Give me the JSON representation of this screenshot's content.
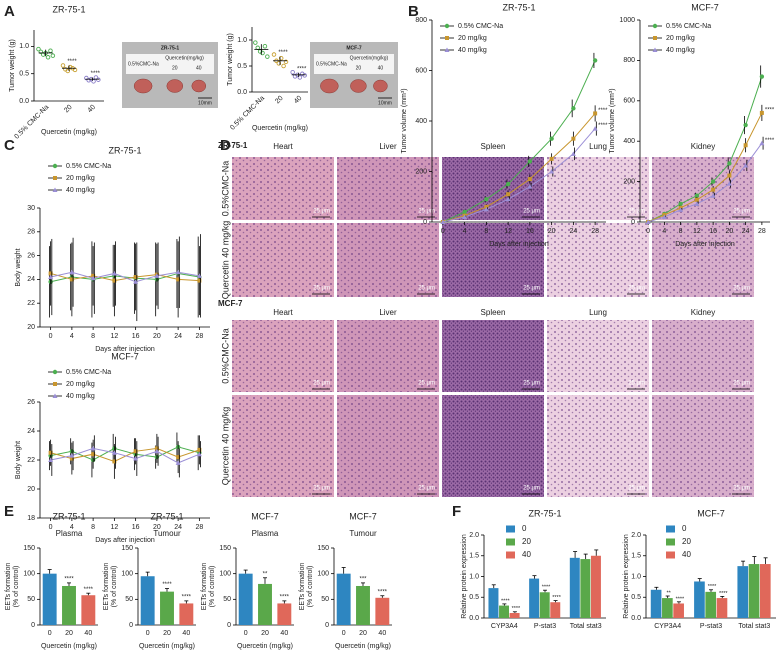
{
  "panel_labels": [
    "A",
    "B",
    "C",
    "D",
    "E",
    "F"
  ],
  "photos": [
    {
      "title": "ZR-75-1",
      "control": "0.5%CMC-Na",
      "treatment": "Quercetin(mg/kg)",
      "doses": [
        "20",
        "40"
      ],
      "scale": "10mm"
    },
    {
      "title": "MCF-7",
      "control": "0.5%CMC-Na",
      "treatment": "Quercetin(mg/kg)",
      "doses": [
        "20",
        "40"
      ],
      "scale": "10mm"
    }
  ],
  "histology": {
    "scale": "25 μm",
    "blocks": [
      {
        "title": "ZR-75-1",
        "tissues": [
          "Heart",
          "Liver",
          "Spleen",
          "Lung",
          "Kidney"
        ],
        "rows": [
          "0.5%CMC-Na",
          "Quercetin 40 mg/kg"
        ]
      },
      {
        "title": "MCF-7",
        "tissues": [
          "Heart",
          "Liver",
          "Spleen",
          "Lung",
          "Kidney"
        ],
        "rows": [
          "0.5%CMC-Na",
          "Quercetin 40 mg/kg"
        ]
      }
    ]
  },
  "chart_data": [
    {
      "type": "dot",
      "title": "ZR-75-1",
      "y_label": "Tumor weight (g)",
      "x_label": "Quercetin (mg/kg)",
      "categories": [
        "0.5% CMC-Na",
        "20",
        "40"
      ],
      "colors": [
        "#4caf50",
        "#c8a030",
        "#8a7ec8"
      ],
      "values": [
        0.88,
        0.6,
        0.4
      ],
      "errors": [
        0.06,
        0.05,
        0.03
      ],
      "points": [
        [
          0.95,
          0.9,
          0.85,
          0.88,
          0.8,
          0.92,
          0.83
        ],
        [
          0.65,
          0.58,
          0.55,
          0.62,
          0.6,
          0.57
        ],
        [
          0.42,
          0.38,
          0.4,
          0.36,
          0.43,
          0.39
        ]
      ],
      "annotations": [
        null,
        "****",
        "****"
      ],
      "ylim": [
        0,
        1.3
      ],
      "yticks": [
        {
          "value": 0,
          "label": "0.0"
        },
        {
          "value": 0.5,
          "label": "0.5"
        },
        {
          "value": 1,
          "label": "1.0"
        }
      ]
    },
    {
      "type": "dot",
      "y_label": "Tumor weight (g)",
      "x_label": "Quercetin (mg/kg)",
      "categories": [
        "0.5% CMC-Na",
        "20",
        "40"
      ],
      "colors": [
        "#4caf50",
        "#c8a030",
        "#8a7ec8"
      ],
      "values": [
        0.82,
        0.6,
        0.33
      ],
      "errors": [
        0.1,
        0.08,
        0.04
      ],
      "points": [
        [
          0.95,
          0.85,
          0.78,
          0.75,
          0.88,
          0.68
        ],
        [
          0.72,
          0.6,
          0.55,
          0.65,
          0.5,
          0.58
        ],
        [
          0.38,
          0.3,
          0.33,
          0.28,
          0.35,
          0.32
        ]
      ],
      "annotations": [
        null,
        "****",
        "****"
      ],
      "ylim": [
        0,
        1.25
      ],
      "yticks": [
        {
          "value": 0,
          "label": "0.0"
        },
        {
          "value": 0.5,
          "label": "0.5"
        },
        {
          "value": 1,
          "label": "1.0"
        }
      ]
    },
    {
      "type": "line",
      "title": "ZR-75-1",
      "y_label": "Tumor volume (mm³)",
      "x_label": "Days after injection",
      "x": [
        0,
        4,
        8,
        12,
        16,
        20,
        24,
        28
      ],
      "xlim": [
        -2,
        30
      ],
      "xticks": [
        0,
        4,
        8,
        12,
        16,
        20,
        24,
        28
      ],
      "ylim": [
        0,
        800
      ],
      "yticks": [
        0,
        200,
        400,
        600,
        800
      ],
      "series": [
        {
          "name": "0.5% CMC-Na",
          "color": "#4caf50",
          "marker": "circle",
          "values": [
            0,
            40,
            90,
            150,
            240,
            330,
            450,
            640
          ],
          "errors": [
            0,
            8,
            12,
            18,
            22,
            28,
            35,
            30
          ]
        },
        {
          "name": "20 mg/kg",
          "color": "#c8962e",
          "marker": "square",
          "values": [
            0,
            25,
            60,
            110,
            170,
            250,
            330,
            430
          ],
          "errors": [
            0,
            6,
            10,
            15,
            18,
            22,
            28,
            32
          ],
          "annotation": "****"
        },
        {
          "name": "40 mg/kg",
          "color": "#9b8fd6",
          "marker": "triangle",
          "values": [
            0,
            20,
            50,
            90,
            140,
            200,
            270,
            370
          ],
          "errors": [
            0,
            5,
            8,
            12,
            15,
            20,
            25,
            28
          ],
          "annotation": "****"
        }
      ]
    },
    {
      "type": "line",
      "title": "MCF-7",
      "y_label": "Tumor volume (mm³)",
      "x_label": "Days after injection",
      "x": [
        0,
        4,
        8,
        12,
        16,
        20,
        24,
        28
      ],
      "xlim": [
        -2,
        30
      ],
      "xticks": [
        0,
        4,
        8,
        12,
        16,
        20,
        24,
        28
      ],
      "ylim": [
        0,
        1000
      ],
      "yticks": [
        0,
        200,
        400,
        600,
        800,
        1000
      ],
      "series": [
        {
          "name": "0.5% CMC-Na",
          "color": "#4caf50",
          "marker": "circle",
          "values": [
            0,
            40,
            90,
            130,
            200,
            290,
            480,
            720
          ],
          "errors": [
            0,
            8,
            12,
            15,
            20,
            30,
            45,
            55
          ]
        },
        {
          "name": "20 mg/kg",
          "color": "#c8962e",
          "marker": "square",
          "values": [
            0,
            35,
            70,
            110,
            160,
            230,
            380,
            540
          ],
          "errors": [
            0,
            7,
            10,
            14,
            18,
            25,
            35,
            40
          ],
          "annotation": "****"
        },
        {
          "name": "40 mg/kg",
          "color": "#9b8fd6",
          "marker": "triangle",
          "values": [
            0,
            25,
            60,
            90,
            130,
            190,
            280,
            390
          ],
          "errors": [
            0,
            6,
            9,
            12,
            15,
            20,
            28,
            32
          ],
          "annotation": "****"
        }
      ]
    },
    {
      "type": "line",
      "title": "ZR-75-1",
      "y_label": "Body weight",
      "x_label": "Days after injection",
      "x": [
        0,
        4,
        8,
        12,
        16,
        20,
        24,
        28
      ],
      "xlim": [
        -2,
        30
      ],
      "xticks": [
        0,
        4,
        8,
        12,
        16,
        20,
        24,
        28
      ],
      "ylim": [
        20,
        30
      ],
      "yticks": [
        20,
        22,
        24,
        26,
        28,
        30
      ],
      "series": [
        {
          "name": "0.5% CMC-Na",
          "color": "#4caf50",
          "marker": "circle",
          "values": [
            23.8,
            24.2,
            24.0,
            24.3,
            24.1,
            24.0,
            24.5,
            24.2
          ],
          "errors": [
            3,
            2.8,
            3.2,
            2.6,
            3,
            3.1,
            2.9,
            3.4
          ]
        },
        {
          "name": "20 mg/kg",
          "color": "#c8962e",
          "marker": "square",
          "values": [
            24.5,
            24.0,
            24.3,
            23.9,
            24.2,
            24.4,
            24.0,
            23.9
          ],
          "errors": [
            2.7,
            3.1,
            2.5,
            3,
            2.8,
            2.6,
            3.2,
            2.9
          ]
        },
        {
          "name": "40 mg/kg",
          "color": "#9b8fd6",
          "marker": "triangle",
          "values": [
            24.2,
            24.6,
            24.1,
            24.5,
            23.8,
            24.3,
            24.6,
            24.3
          ],
          "errors": [
            3.2,
            2.9,
            3,
            2.7,
            3.3,
            2.8,
            3,
            3.5
          ]
        }
      ]
    },
    {
      "type": "line",
      "title": "MCF-7",
      "y_label": "Body weight",
      "x_label": "Days after injection",
      "x": [
        0,
        4,
        8,
        12,
        16,
        20,
        24,
        28
      ],
      "xlim": [
        -2,
        30
      ],
      "xticks": [
        0,
        4,
        8,
        12,
        16,
        20,
        24,
        28
      ],
      "ylim": [
        18,
        26
      ],
      "yticks": [
        18,
        20,
        22,
        24,
        26
      ],
      "series": [
        {
          "name": "0.5% CMC-Na",
          "color": "#4caf50",
          "marker": "circle",
          "values": [
            22.3,
            22.6,
            22.0,
            22.8,
            22.4,
            22.2,
            22.9,
            22.5
          ],
          "errors": [
            1,
            0.9,
            1.2,
            1,
            1.1,
            0.8,
            1,
            1.2
          ]
        },
        {
          "name": "20 mg/kg",
          "color": "#c8962e",
          "marker": "square",
          "values": [
            22.5,
            22.1,
            22.4,
            21.9,
            22.6,
            22.8,
            22.2,
            22.7
          ],
          "errors": [
            0.9,
            1.1,
            1,
            1.2,
            0.9,
            1,
            1.1,
            1
          ]
        },
        {
          "name": "40 mg/kg",
          "color": "#9b8fd6",
          "marker": "triangle",
          "values": [
            22.0,
            22.3,
            22.8,
            22.5,
            22.1,
            22.6,
            21.8,
            22.4
          ],
          "errors": [
            1.1,
            1,
            0.9,
            1.1,
            1.2,
            1,
            1,
            0.9
          ]
        }
      ]
    },
    {
      "type": "bar",
      "title": "ZR-75-1",
      "subtitle": "Plasma",
      "y_label": [
        "EETs formation",
        "(% of control)"
      ],
      "x_label": "Quercetin (mg/kg)",
      "categories": [
        "0",
        "20",
        "40"
      ],
      "colors": [
        "#2e86c1",
        "#5aa84a",
        "#e0685a"
      ],
      "values": [
        100,
        76,
        58
      ],
      "errors": [
        8,
        6,
        4
      ],
      "annotations": [
        null,
        "****",
        "****"
      ],
      "ylim": [
        0,
        150
      ],
      "yticks": [
        0,
        50,
        100,
        150
      ]
    },
    {
      "type": "bar",
      "title": "ZR-75-1",
      "subtitle": "Tumour",
      "y_label": [
        "EETs formation",
        "(% of control)"
      ],
      "x_label": "Quercetin (mg/kg)",
      "categories": [
        "0",
        "20",
        "40"
      ],
      "colors": [
        "#2e86c1",
        "#5aa84a",
        "#e0685a"
      ],
      "values": [
        95,
        65,
        42
      ],
      "errors": [
        8,
        6,
        5
      ],
      "annotations": [
        null,
        "****",
        "****"
      ],
      "ylim": [
        0,
        150
      ],
      "yticks": [
        0,
        50,
        100,
        150
      ]
    },
    {
      "type": "bar",
      "title": "MCF-7",
      "subtitle": "Plasma",
      "y_label": [
        "EETs formation",
        "(% of control)"
      ],
      "x_label": "Quercetin (mg/kg)",
      "categories": [
        "0",
        "20",
        "40"
      ],
      "colors": [
        "#2e86c1",
        "#5aa84a",
        "#e0685a"
      ],
      "values": [
        100,
        80,
        42
      ],
      "errors": [
        7,
        12,
        5
      ],
      "annotations": [
        null,
        "**",
        "****"
      ],
      "ylim": [
        0,
        150
      ],
      "yticks": [
        0,
        50,
        100,
        150
      ]
    },
    {
      "type": "bar",
      "title": "MCF-7",
      "subtitle": "Tumour",
      "y_label": [
        "EETs formation",
        "(% of control)"
      ],
      "x_label": "Quercetin (mg/kg)",
      "categories": [
        "0",
        "20",
        "40"
      ],
      "colors": [
        "#2e86c1",
        "#5aa84a",
        "#e0685a"
      ],
      "values": [
        100,
        76,
        53
      ],
      "errors": [
        12,
        6,
        4
      ],
      "annotations": [
        null,
        "***",
        "****"
      ],
      "ylim": [
        0,
        150
      ],
      "yticks": [
        0,
        50,
        100,
        150
      ]
    },
    {
      "type": "grouped_bar",
      "title": "ZR-75-1",
      "y_label": "Relative protein expression",
      "categories": [
        "CYP3A4",
        "P-stat3",
        "Total stat3"
      ],
      "ylim": [
        0,
        2
      ],
      "yticks": [
        {
          "value": 0,
          "label": "0.0"
        },
        {
          "value": 0.5,
          "label": "0.5"
        },
        {
          "value": 1,
          "label": "1.0"
        },
        {
          "value": 1.5,
          "label": "1.5"
        },
        {
          "value": 2,
          "label": "2.0"
        }
      ],
      "series": [
        {
          "name": "0",
          "color": "#2e86c1",
          "values": [
            0.72,
            0.95,
            1.45
          ],
          "errors": [
            0.08,
            0.07,
            0.15
          ],
          "annotations": [
            null,
            null,
            null
          ]
        },
        {
          "name": "20",
          "color": "#5aa84a",
          "values": [
            0.3,
            0.62,
            1.42
          ],
          "errors": [
            0.04,
            0.05,
            0.12
          ],
          "annotations": [
            "****",
            "****",
            null
          ]
        },
        {
          "name": "40",
          "color": "#e0685a",
          "values": [
            0.12,
            0.38,
            1.5
          ],
          "errors": [
            0.03,
            0.04,
            0.14
          ],
          "annotations": [
            "****",
            "****",
            null
          ]
        }
      ]
    },
    {
      "type": "grouped_bar",
      "title": "MCF-7",
      "y_label": "Relative protein expression",
      "categories": [
        "CYP3A4",
        "P-stat3",
        "Total stat3"
      ],
      "ylim": [
        0,
        2
      ],
      "yticks": [
        {
          "value": 0,
          "label": "0.0"
        },
        {
          "value": 0.5,
          "label": "0.5"
        },
        {
          "value": 1,
          "label": "1.0"
        },
        {
          "value": 1.5,
          "label": "1.5"
        },
        {
          "value": 2,
          "label": "2.0"
        }
      ],
      "series": [
        {
          "name": "0",
          "color": "#2e86c1",
          "values": [
            0.68,
            0.88,
            1.25
          ],
          "errors": [
            0.06,
            0.07,
            0.12
          ],
          "annotations": [
            null,
            null,
            null
          ]
        },
        {
          "name": "20",
          "color": "#5aa84a",
          "values": [
            0.48,
            0.63,
            1.3
          ],
          "errors": [
            0.05,
            0.05,
            0.18
          ],
          "annotations": [
            "**",
            "****",
            null
          ]
        },
        {
          "name": "40",
          "color": "#e0685a",
          "values": [
            0.35,
            0.48,
            1.3
          ],
          "errors": [
            0.04,
            0.04,
            0.15
          ],
          "annotations": [
            "****",
            "****",
            null
          ]
        }
      ]
    }
  ]
}
